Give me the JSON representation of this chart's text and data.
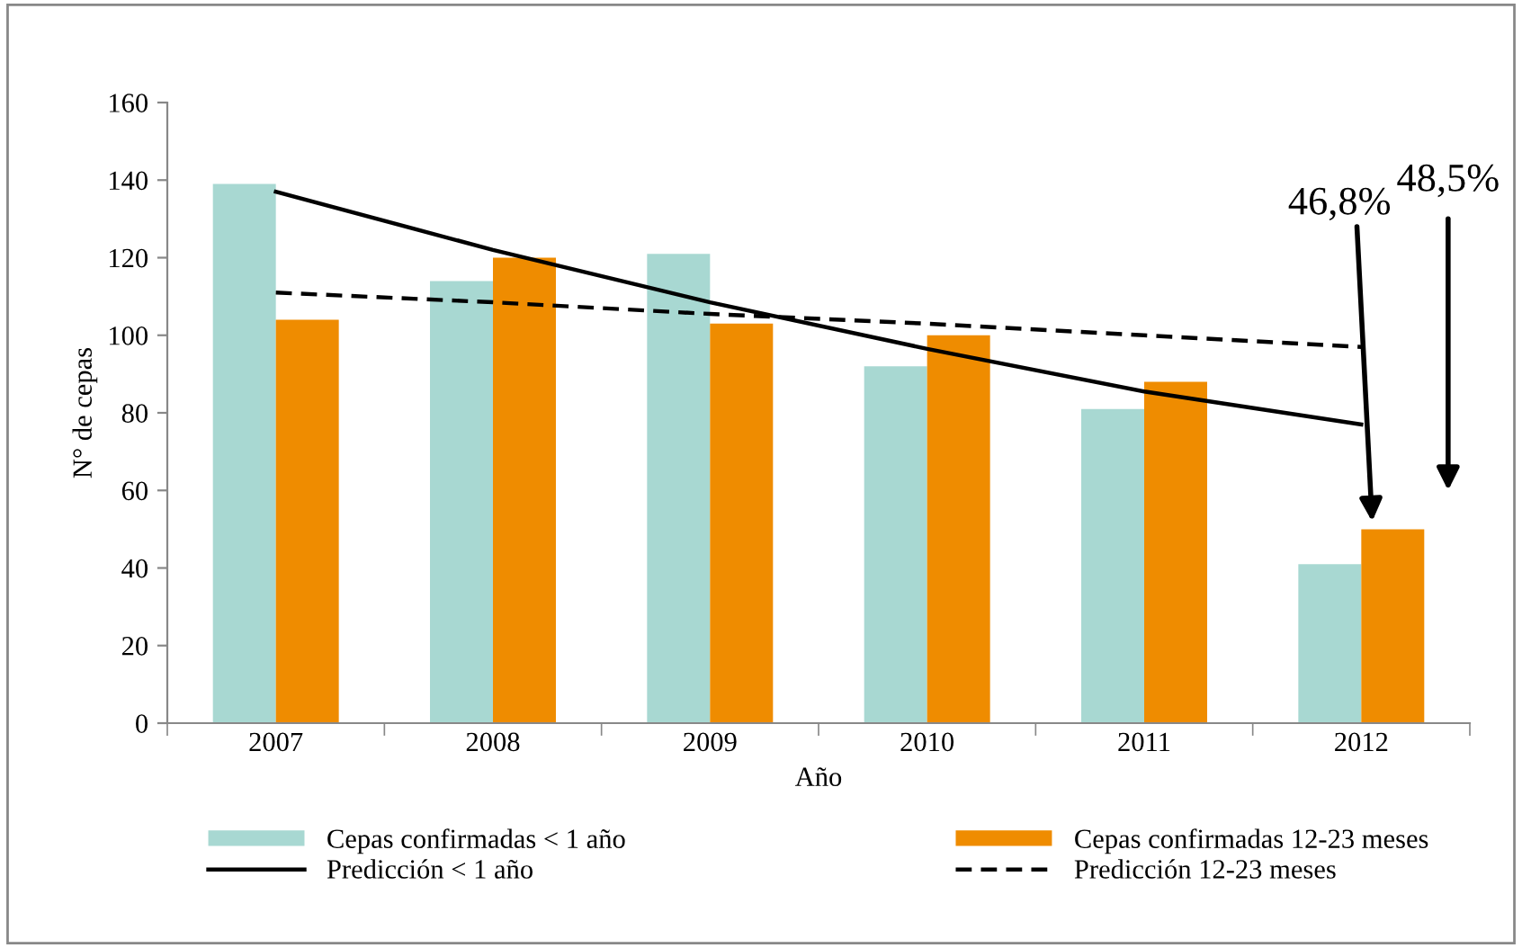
{
  "chart_data": {
    "type": "bar",
    "xlabel": "Año",
    "ylabel": "N° de cepas",
    "categories": [
      "2007",
      "2008",
      "2009",
      "2010",
      "2011",
      "2012"
    ],
    "series": [
      {
        "name": "Cepas confirmadas < 1 año",
        "color": "#a8d8d2",
        "values": [
          139,
          114,
          121,
          92,
          81,
          41
        ]
      },
      {
        "name": "Cepas confirmadas 12-23 meses",
        "color": "#ef8c00",
        "values": [
          104,
          120,
          103,
          100,
          88,
          50
        ]
      },
      {
        "name": "Predicción < 1 año",
        "type": "line",
        "color": "#000000",
        "line_style": "solid",
        "values": [
          137,
          122,
          108.5,
          96.5,
          85.5,
          77
        ]
      },
      {
        "name": "Predicción 12-23 meses",
        "type": "line",
        "color": "#000000",
        "line_style": "dashed",
        "values": [
          111,
          108.5,
          105.5,
          103,
          100,
          97
        ]
      }
    ],
    "ylim": [
      0,
      160
    ],
    "yticks": [
      0,
      20,
      40,
      60,
      80,
      100,
      120,
      140,
      160
    ],
    "grid": false,
    "legend": "bottom",
    "marker": "none",
    "annotations": [
      "46,8%",
      "48,5%"
    ]
  }
}
